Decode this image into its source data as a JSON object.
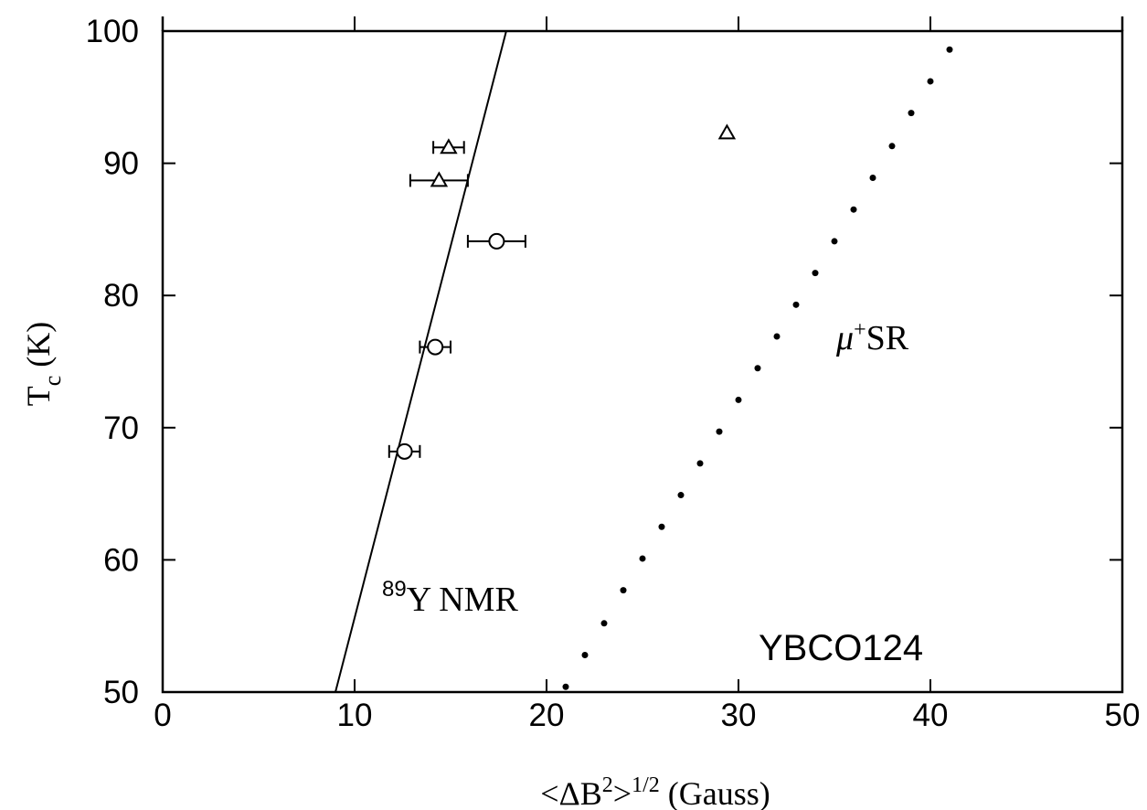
{
  "chart_data": {
    "type": "scatter",
    "title": "",
    "xlabel": {
      "prefix": "<ΔB",
      "sup": "2",
      "mid": ">",
      "sup2": "1/2",
      "suffix": " (Gauss)"
    },
    "ylabel": {
      "main": "T",
      "sub": "c",
      "suffix": "  (K)"
    },
    "xlim": [
      0,
      50
    ],
    "ylim": [
      50,
      100
    ],
    "x_ticks": [
      "0",
      "10",
      "20",
      "30",
      "40",
      "50"
    ],
    "y_ticks": [
      "50",
      "60",
      "70",
      "80",
      "90",
      "100"
    ],
    "grid": false,
    "annotations": {
      "nmr": {
        "sup": "89",
        "text": "Y  NMR"
      },
      "musr": {
        "mu": "μ",
        "sup": "+",
        "text": "SR"
      },
      "compound": "YBCO124"
    },
    "series": [
      {
        "marker": "triangle",
        "points": [
          {
            "x": 14.9,
            "y": 91.2,
            "xerr": 0.8
          },
          {
            "x": 14.4,
            "y": 88.7,
            "xerr": 1.5
          },
          {
            "x": 29.4,
            "y": 92.3,
            "xerr": 0
          }
        ]
      },
      {
        "marker": "circle",
        "points": [
          {
            "x": 17.4,
            "y": 84.1,
            "xerr": 1.5
          },
          {
            "x": 14.2,
            "y": 76.1,
            "xerr": 0.8
          },
          {
            "x": 12.6,
            "y": 68.2,
            "xerr": 0.8
          }
        ]
      },
      {
        "marker": "dot",
        "points": [
          {
            "x": 21.0,
            "y": 50.4
          },
          {
            "x": 22.0,
            "y": 52.8
          },
          {
            "x": 23.0,
            "y": 55.2
          },
          {
            "x": 24.0,
            "y": 57.7
          },
          {
            "x": 25.0,
            "y": 60.1
          },
          {
            "x": 26.0,
            "y": 62.5
          },
          {
            "x": 27.0,
            "y": 64.9
          },
          {
            "x": 28.0,
            "y": 67.3
          },
          {
            "x": 29.0,
            "y": 69.7
          },
          {
            "x": 30.0,
            "y": 72.1
          },
          {
            "x": 31.0,
            "y": 74.5
          },
          {
            "x": 32.0,
            "y": 76.9
          },
          {
            "x": 33.0,
            "y": 79.3
          },
          {
            "x": 34.0,
            "y": 81.7
          },
          {
            "x": 35.0,
            "y": 84.1
          },
          {
            "x": 36.0,
            "y": 86.5
          },
          {
            "x": 37.0,
            "y": 88.9
          },
          {
            "x": 38.0,
            "y": 91.3
          },
          {
            "x": 39.0,
            "y": 93.8
          },
          {
            "x": 40.0,
            "y": 96.2
          },
          {
            "x": 41.0,
            "y": 98.6
          }
        ]
      }
    ],
    "fit_line": {
      "points": [
        {
          "x": 9.0,
          "y": 50.0
        },
        {
          "x": 17.9,
          "y": 100.0
        }
      ]
    }
  }
}
